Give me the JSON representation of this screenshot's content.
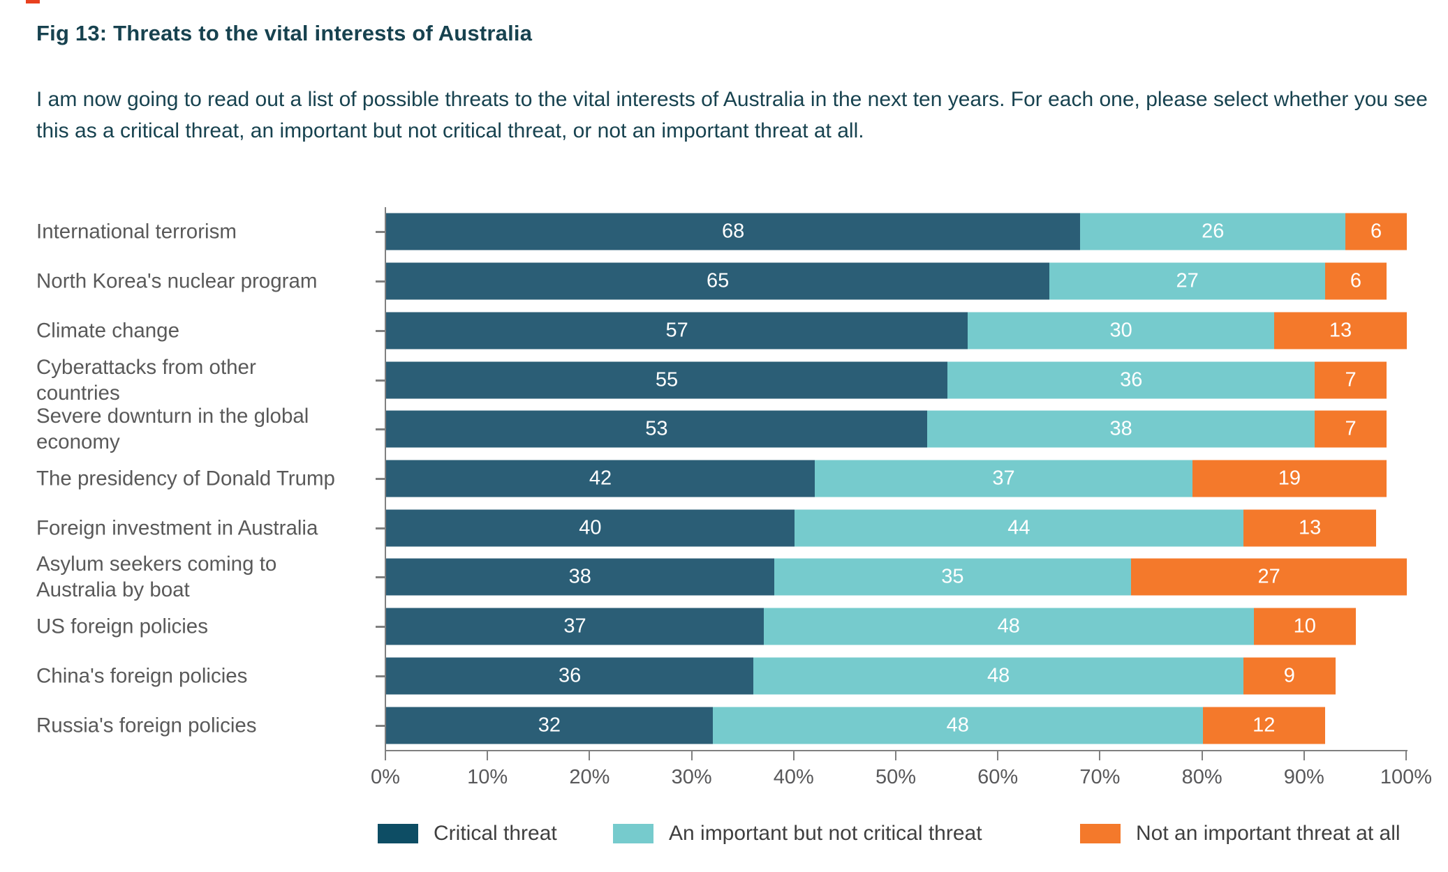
{
  "title": "Fig 13: Threats to the vital interests of Australia",
  "subtitle": "I am now going to read out a list of possible threats to the vital interests of Australia in the next ten years. For each one, please select whether you see this as a critical threat, an important but not critical threat, or not an important threat at all.",
  "colors": {
    "critical_bar": "#2b5e76",
    "critical_legend": "#0d4d64",
    "important_bar": "#76cbcd",
    "not_important_bar": "#f4792b",
    "title_text": "#17424f",
    "category_text": "#595959",
    "axis_line": "#808080",
    "tick_label_text": "#58585a",
    "legend_text": "#3f3f3f",
    "value_text": "#ffffff",
    "page_edge_mark": "#e8401f"
  },
  "chart_data": {
    "type": "bar",
    "orientation": "horizontal",
    "stacked": true,
    "title": "Fig 13: Threats to the vital interests of Australia",
    "xlabel": "",
    "ylabel": "",
    "xlim": [
      0,
      100
    ],
    "x_tick_labels": [
      "0%",
      "10%",
      "20%",
      "30%",
      "40%",
      "50%",
      "60%",
      "70%",
      "80%",
      "90%",
      "100%"
    ],
    "grid": false,
    "legend_position": "bottom",
    "categories": [
      "International terrorism",
      "North Korea's nuclear program",
      "Climate change",
      "Cyberattacks from other\ncountries",
      "Severe downturn in the global\neconomy",
      "The presidency of Donald Trump",
      "Foreign investment in Australia",
      "Asylum seekers coming to\nAustralia by boat",
      "US foreign policies",
      "China's foreign policies",
      "Russia's foreign policies"
    ],
    "series": [
      {
        "name": "Critical threat",
        "values": [
          68,
          65,
          57,
          55,
          53,
          42,
          40,
          38,
          37,
          36,
          32
        ]
      },
      {
        "name": "An important but not critical threat",
        "values": [
          26,
          27,
          30,
          36,
          38,
          37,
          44,
          35,
          48,
          48,
          48
        ]
      },
      {
        "name": "Not an important threat at all",
        "values": [
          6,
          6,
          13,
          7,
          7,
          19,
          13,
          27,
          10,
          9,
          12
        ]
      }
    ]
  },
  "legend": {
    "items": [
      {
        "label": "Critical threat"
      },
      {
        "label": "An important but not critical threat"
      },
      {
        "label": "Not an important threat at all"
      }
    ]
  }
}
